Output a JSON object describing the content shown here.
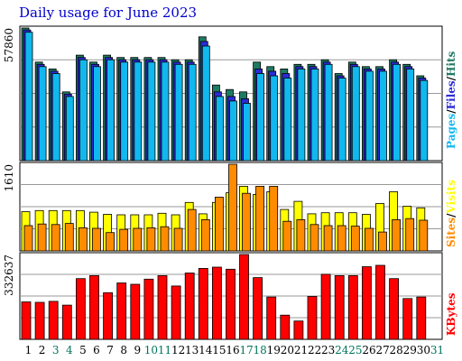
{
  "title": "Daily usage for June 2023",
  "colors": {
    "hits": "#1f7a63",
    "files": "#2b2bd6",
    "pages": "#11b8ee",
    "visits": "#ffff00",
    "sites": "#ff8c00",
    "kbytes": "#ff0000",
    "day_weekday": "#000000",
    "day_weekend": "#00745c"
  },
  "chart_data": [
    {
      "type": "bar",
      "panel": "hits-files-pages",
      "categories": [
        "1",
        "2",
        "3",
        "4",
        "5",
        "6",
        "7",
        "8",
        "9",
        "10",
        "11",
        "12",
        "13",
        "14",
        "15",
        "16",
        "17",
        "18",
        "19",
        "20",
        "21",
        "22",
        "23",
        "24",
        "25",
        "26",
        "27",
        "28",
        "29",
        "30",
        "31"
      ],
      "ymax_label": "57860",
      "ylim": [
        0,
        57860
      ],
      "legend": {
        "a": "Pages",
        "sep1": "/",
        "b": "Files",
        "sep2": "/",
        "c": "Hits"
      },
      "series": [
        {
          "name": "Hits",
          "values": [
            57860,
            43000,
            40000,
            30000,
            46000,
            43000,
            46000,
            45000,
            45000,
            45000,
            45000,
            44000,
            44000,
            54000,
            33000,
            31000,
            30000,
            43000,
            41000,
            40000,
            42000,
            42000,
            44000,
            38000,
            43000,
            41000,
            41000,
            44000,
            42000,
            37000,
            null
          ]
        },
        {
          "name": "Files",
          "values": [
            57000,
            42000,
            39000,
            29000,
            45000,
            42000,
            45000,
            44000,
            44000,
            44000,
            44000,
            43000,
            43000,
            52000,
            30000,
            28000,
            27000,
            40000,
            39000,
            38000,
            41000,
            41000,
            43000,
            37000,
            42000,
            40000,
            40000,
            43000,
            41000,
            36000,
            null
          ]
        },
        {
          "name": "Pages",
          "values": [
            56000,
            41000,
            38000,
            28000,
            44000,
            41000,
            44000,
            43000,
            43000,
            43000,
            43000,
            42000,
            42000,
            50000,
            28000,
            26000,
            25000,
            38000,
            37000,
            36000,
            40000,
            40000,
            42000,
            36000,
            41000,
            39000,
            39000,
            42000,
            40000,
            35000,
            null
          ]
        }
      ]
    },
    {
      "type": "bar",
      "panel": "visits-sites",
      "categories": [
        "1",
        "2",
        "3",
        "4",
        "5",
        "6",
        "7",
        "8",
        "9",
        "10",
        "11",
        "12",
        "13",
        "14",
        "15",
        "16",
        "17",
        "18",
        "19",
        "20",
        "21",
        "22",
        "23",
        "24",
        "25",
        "26",
        "27",
        "28",
        "29",
        "30",
        "31"
      ],
      "ymax_label": "1610",
      "ylim": [
        0,
        1610
      ],
      "legend": {
        "a": "Sites",
        "sep1": "/",
        "b": "Visits"
      },
      "series": [
        {
          "name": "Visits",
          "values": [
            730,
            750,
            750,
            750,
            750,
            720,
            680,
            670,
            670,
            670,
            700,
            670,
            900,
            690,
            900,
            1080,
            1200,
            1050,
            1100,
            770,
            920,
            690,
            710,
            710,
            710,
            680,
            880,
            1100,
            830,
            800,
            null
          ]
        },
        {
          "name": "Sites",
          "values": [
            470,
            500,
            490,
            510,
            430,
            420,
            340,
            400,
            420,
            430,
            450,
            420,
            770,
            580,
            1000,
            1610,
            1070,
            1200,
            1200,
            550,
            580,
            490,
            470,
            470,
            460,
            420,
            350,
            580,
            600,
            570,
            null
          ]
        }
      ]
    },
    {
      "type": "bar",
      "panel": "kbytes",
      "categories": [
        "1",
        "2",
        "3",
        "4",
        "5",
        "6",
        "7",
        "8",
        "9",
        "10",
        "11",
        "12",
        "13",
        "14",
        "15",
        "16",
        "17",
        "18",
        "19",
        "20",
        "21",
        "22",
        "23",
        "24",
        "25",
        "26",
        "27",
        "28",
        "29",
        "30",
        "31"
      ],
      "ymax_label": "332637",
      "ylim": [
        0,
        332637
      ],
      "legend": {
        "a": "KBytes"
      },
      "series": [
        {
          "name": "KBytes",
          "values": [
            147000,
            145000,
            149000,
            134000,
            238000,
            250000,
            183000,
            221000,
            216000,
            236000,
            250000,
            209000,
            260000,
            278000,
            283000,
            275000,
            332637,
            242000,
            166000,
            95000,
            72000,
            168000,
            255000,
            250000,
            250000,
            285000,
            290000,
            238000,
            160000,
            166000,
            null
          ]
        }
      ]
    }
  ]
}
